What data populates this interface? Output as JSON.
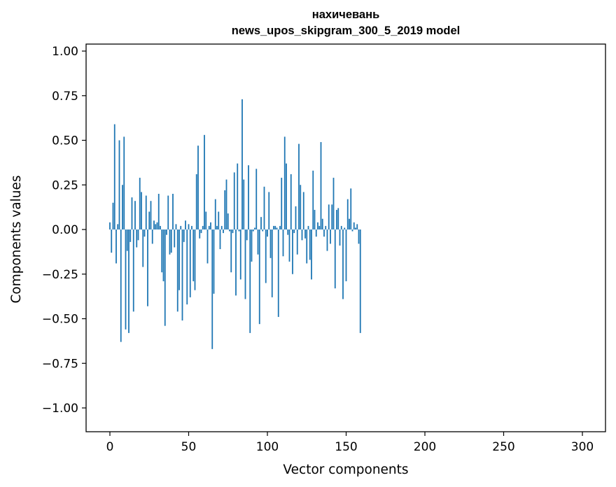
{
  "chart_data": {
    "type": "bar",
    "title_line1": "нахичевань",
    "title_line2": "news_upos_skipgram_300_5_2019 model",
    "xlabel": "Vector components",
    "ylabel": "Components values",
    "xlim": [
      -15,
      315
    ],
    "ylim": [
      -1.15,
      1.04
    ],
    "xticks": [
      0,
      50,
      100,
      150,
      200,
      250,
      300
    ],
    "yticks": [
      1.0,
      0.75,
      0.5,
      0.25,
      0.0,
      -0.25,
      -0.5,
      -0.75,
      -1.0
    ],
    "ytick_labels": [
      "1.00",
      "0.75",
      "0.50",
      "0.25",
      "0.00",
      "−0.25",
      "−0.50",
      "−0.75",
      "−1.00"
    ],
    "bar_color": "#1f77b4",
    "values": [
      0.04,
      -0.13,
      0.15,
      0.59,
      -0.19,
      0.03,
      0.5,
      -0.63,
      0.25,
      0.52,
      -0.56,
      -0.12,
      -0.58,
      -0.07,
      0.18,
      -0.46,
      0.16,
      -0.1,
      -0.06,
      0.29,
      0.21,
      -0.21,
      -0.04,
      0.19,
      -0.43,
      0.1,
      0.16,
      -0.08,
      0.05,
      0.03,
      0.04,
      0.2,
      0.02,
      -0.24,
      -0.29,
      -0.54,
      -0.03,
      0.19,
      -0.14,
      -0.13,
      0.2,
      -0.1,
      0.03,
      -0.46,
      -0.34,
      0.02,
      -0.51,
      -0.07,
      0.05,
      -0.42,
      0.03,
      -0.38,
      0.02,
      -0.29,
      -0.34,
      0.31,
      0.47,
      -0.05,
      -0.02,
      0.02,
      0.53,
      0.1,
      -0.19,
      0.02,
      0.04,
      -0.67,
      -0.36,
      0.17,
      0.02,
      0.1,
      -0.11,
      0.02,
      -0.02,
      0.22,
      0.28,
      0.09,
      -0.01,
      -0.24,
      -0.02,
      0.32,
      -0.37,
      0.37,
      -0.01,
      -0.28,
      0.73,
      0.28,
      -0.39,
      -0.06,
      0.36,
      -0.58,
      -0.18,
      -0.01,
      0.01,
      0.34,
      -0.14,
      -0.53,
      0.07,
      -0.01,
      0.24,
      -0.3,
      -0.04,
      0.21,
      -0.16,
      -0.38,
      0.02,
      0.02,
      0.01,
      -0.49,
      0.02,
      0.29,
      -0.15,
      0.52,
      0.37,
      -0.03,
      -0.18,
      0.31,
      -0.25,
      -0.02,
      0.13,
      -0.14,
      0.48,
      0.25,
      -0.06,
      0.21,
      -0.05,
      -0.19,
      0.02,
      -0.17,
      -0.28,
      0.33,
      0.11,
      -0.04,
      0.04,
      0.02,
      0.49,
      0.06,
      -0.04,
      0.02,
      -0.12,
      0.14,
      -0.08,
      0.14,
      0.29,
      -0.33,
      0.11,
      0.12,
      -0.09,
      0.02,
      -0.39,
      0.01,
      -0.29,
      0.17,
      0.06,
      0.23,
      -0.01,
      0.04,
      0.01,
      0.03,
      -0.08,
      -0.58
    ]
  }
}
